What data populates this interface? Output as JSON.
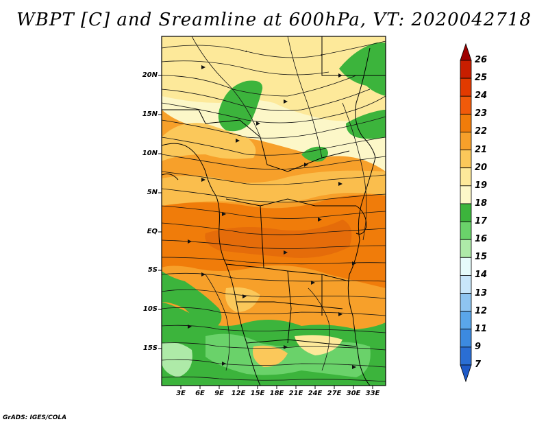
{
  "title": "WBPT [C] and Sreamline at 600hPa, VT: 2020042718",
  "credit": "GrADS: IGES/COLA",
  "map": {
    "variable": "WBPT",
    "units": "C",
    "level": "600hPa",
    "valid_time": "2020042718",
    "lat_labels": [
      "20N",
      "15N",
      "10N",
      "5N",
      "EQ",
      "5S",
      "10S",
      "15S"
    ],
    "lon_labels": [
      "3E",
      "6E",
      "9E",
      "12E",
      "15E",
      "18E",
      "21E",
      "24E",
      "27E",
      "30E",
      "33E"
    ]
  },
  "colorbar": {
    "levels": [
      "26",
      "25",
      "24",
      "23",
      "22",
      "21",
      "20",
      "19",
      "18",
      "17",
      "16",
      "15",
      "14",
      "13",
      "12",
      "11",
      "9",
      "7"
    ],
    "colors": [
      "#9e0000",
      "#c81e00",
      "#e23a00",
      "#f05a0a",
      "#f07c0a",
      "#f7a02a",
      "#fbc85a",
      "#fde99a",
      "#fcf7c8",
      "#3cb43c",
      "#6ad26a",
      "#aeeaa8",
      "#e6fbfb",
      "#c8e6fa",
      "#8ec4f0",
      "#5aa6ea",
      "#3c8ae0",
      "#2a6ed4",
      "#1e5ac8"
    ]
  }
}
